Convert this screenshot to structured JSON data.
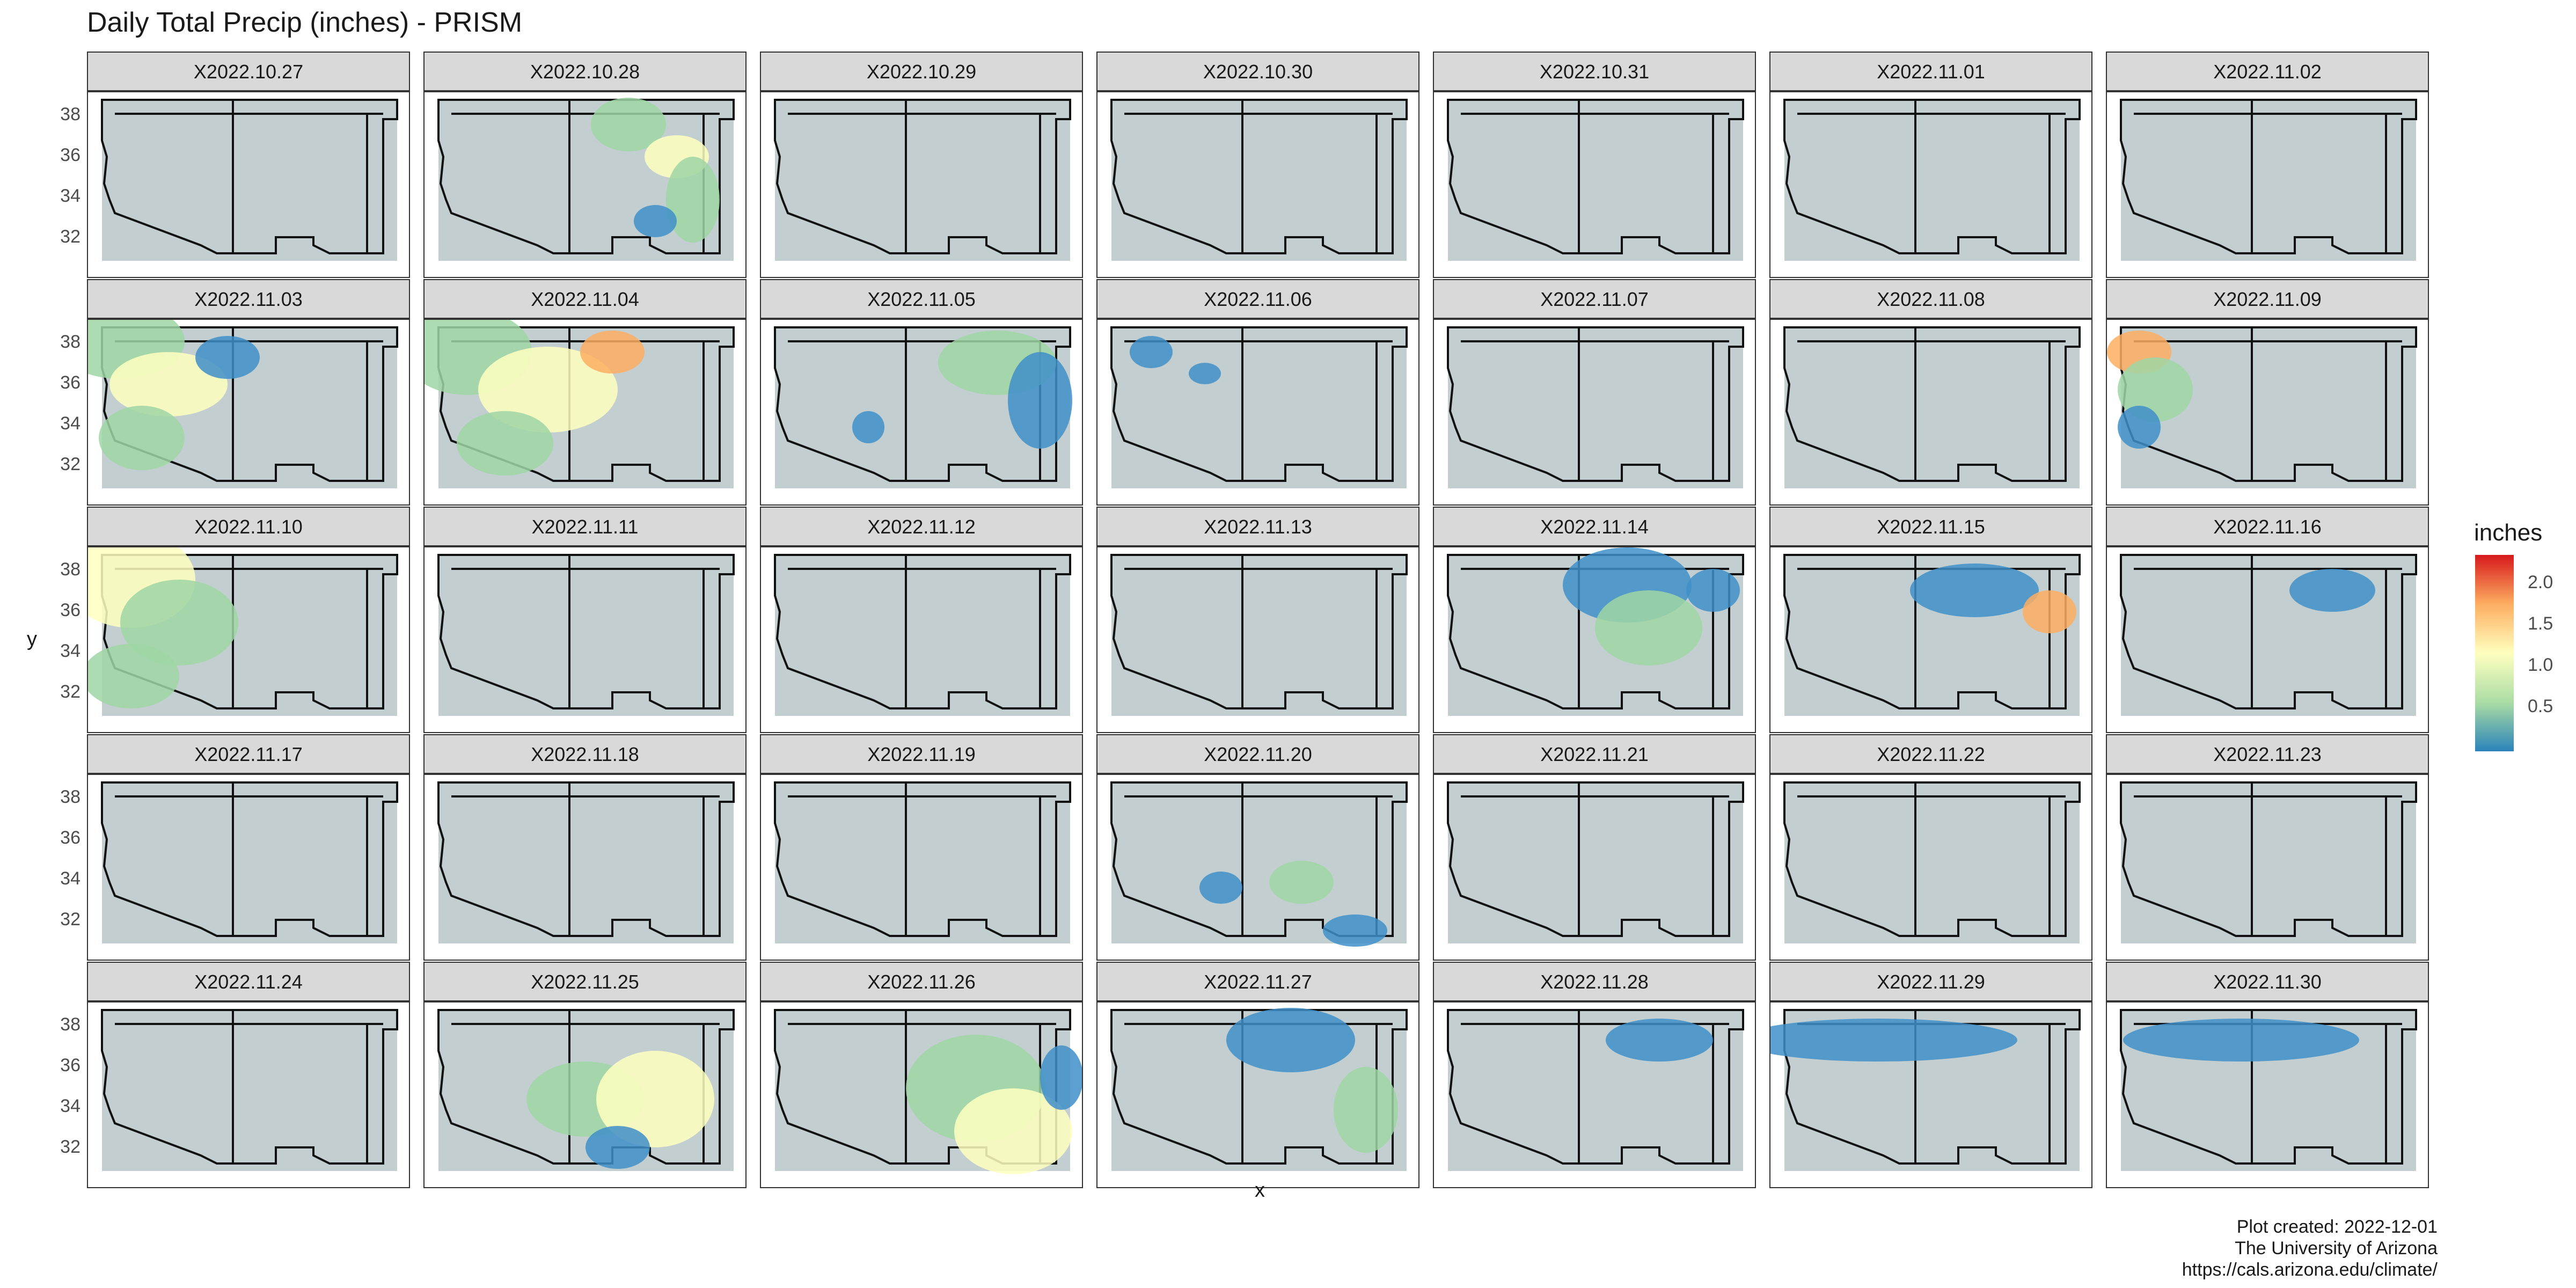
{
  "title": "Daily Total Precip (inches) - PRISM",
  "panels": [
    "X2022.10.27",
    "X2022.10.28",
    "X2022.10.29",
    "X2022.10.30",
    "X2022.10.31",
    "X2022.11.01",
    "X2022.11.02",
    "X2022.11.03",
    "X2022.11.04",
    "X2022.11.05",
    "X2022.11.06",
    "X2022.11.07",
    "X2022.11.08",
    "X2022.11.09",
    "X2022.11.10",
    "X2022.11.11",
    "X2022.11.12",
    "X2022.11.13",
    "X2022.11.14",
    "X2022.11.15",
    "X2022.11.16",
    "X2022.11.17",
    "X2022.11.18",
    "X2022.11.19",
    "X2022.11.20",
    "X2022.11.21",
    "X2022.11.22",
    "X2022.11.23",
    "X2022.11.24",
    "X2022.11.25",
    "X2022.11.26",
    "X2022.11.27",
    "X2022.11.28",
    "X2022.11.29",
    "X2022.11.30"
  ],
  "y_ticks": [
    "38",
    "36",
    "34",
    "32"
  ],
  "axis": {
    "x": "x",
    "y": "y"
  },
  "legend": {
    "title": "inches",
    "labels": [
      "2.0",
      "1.5",
      "1.0",
      "0.5"
    ],
    "colors": [
      "#d7191c",
      "#fdae61",
      "#ffffbf",
      "#abdda4",
      "#2b83ba"
    ]
  },
  "caption": {
    "line1": "Plot created: 2022-12-01",
    "line2": "The University of Arizona",
    "line3": "https://cals.arizona.edu/climate/"
  },
  "colors": {
    "background": "#c2cecf",
    "low": "#3f8fc9",
    "mid": "#8fd4a4",
    "high": "#ffffbf",
    "peak": "#d7191c"
  }
}
